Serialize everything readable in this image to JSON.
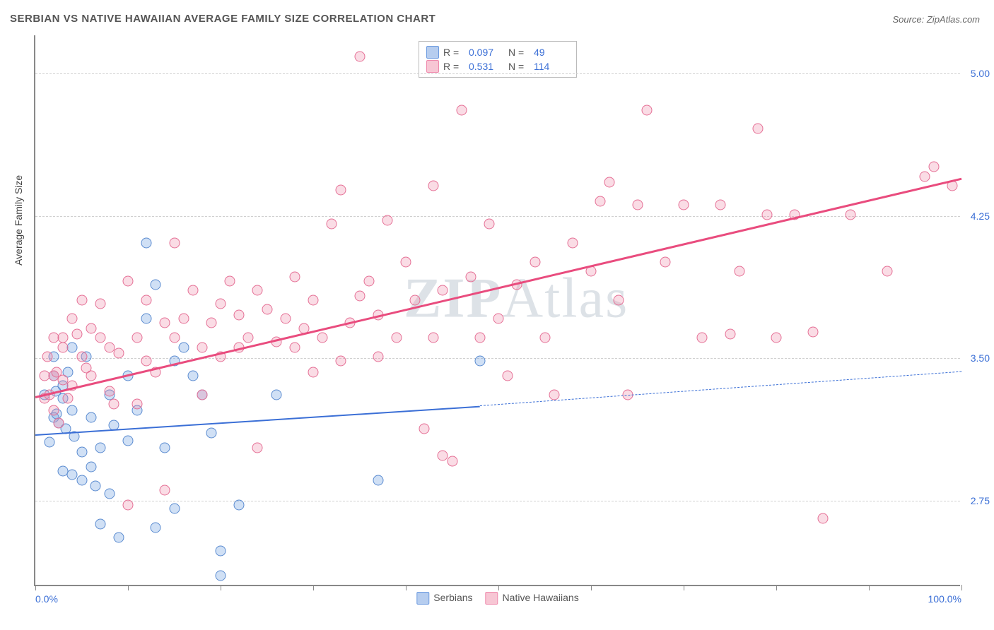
{
  "title": "SERBIAN VS NATIVE HAWAIIAN AVERAGE FAMILY SIZE CORRELATION CHART",
  "source": "Source: ZipAtlas.com",
  "ylabel": "Average Family Size",
  "watermark_bold": "ZIP",
  "watermark_light": "Atlas",
  "chart": {
    "type": "scatter",
    "xlim": [
      0,
      100
    ],
    "ylim": [
      2.3,
      5.2
    ],
    "yticks": [
      2.75,
      3.5,
      4.25,
      5.0
    ],
    "ytick_labels": [
      "2.75",
      "3.50",
      "4.25",
      "5.00"
    ],
    "xticks": [
      0,
      10,
      20,
      30,
      40,
      50,
      60,
      70,
      80,
      90,
      100
    ],
    "xtick_labels": {
      "0": "0.0%",
      "100": "100.0%"
    },
    "background_color": "#ffffff",
    "grid_color": "#d0d0d0",
    "axis_color": "#888888",
    "axis_label_color": "#3b6fd6",
    "marker_size": 15,
    "series": [
      {
        "name": "Serbians",
        "color_fill": "rgba(120,165,225,0.35)",
        "color_stroke": "#5a8bd0",
        "swatch_fill": "#b6cdef",
        "swatch_border": "#6d9be0",
        "R": "0.097",
        "N": "49",
        "trend": {
          "x1": 0,
          "y1": 3.1,
          "x2": 48,
          "y2": 3.25,
          "x2_dash": 100,
          "y2_dash": 3.43,
          "color": "#3b6fd6",
          "width": 2
        },
        "points": [
          [
            1,
            3.3
          ],
          [
            1.5,
            3.05
          ],
          [
            2,
            3.5
          ],
          [
            2,
            3.4
          ],
          [
            2.2,
            3.32
          ],
          [
            2,
            3.18
          ],
          [
            2.3,
            3.2
          ],
          [
            2.5,
            3.15
          ],
          [
            3,
            2.9
          ],
          [
            3,
            3.28
          ],
          [
            3,
            3.35
          ],
          [
            3.3,
            3.12
          ],
          [
            3.5,
            3.42
          ],
          [
            4,
            3.55
          ],
          [
            4,
            2.88
          ],
          [
            4,
            3.22
          ],
          [
            4.2,
            3.08
          ],
          [
            5,
            2.85
          ],
          [
            5,
            3.0
          ],
          [
            5.5,
            3.5
          ],
          [
            6,
            3.18
          ],
          [
            6,
            2.92
          ],
          [
            6.5,
            2.82
          ],
          [
            7,
            3.02
          ],
          [
            7,
            2.62
          ],
          [
            8,
            3.3
          ],
          [
            8,
            2.78
          ],
          [
            8.5,
            3.14
          ],
          [
            9,
            2.55
          ],
          [
            10,
            3.4
          ],
          [
            10,
            3.06
          ],
          [
            11,
            3.22
          ],
          [
            12,
            3.7
          ],
          [
            12,
            4.1
          ],
          [
            13,
            3.88
          ],
          [
            14,
            3.02
          ],
          [
            15,
            3.48
          ],
          [
            16,
            3.55
          ],
          [
            17,
            3.4
          ],
          [
            18,
            3.3
          ],
          [
            19,
            3.1
          ],
          [
            20,
            2.48
          ],
          [
            20,
            2.35
          ],
          [
            22,
            2.72
          ],
          [
            26,
            3.3
          ],
          [
            37,
            2.85
          ],
          [
            48,
            3.48
          ],
          [
            13,
            2.6
          ],
          [
            15,
            2.7
          ]
        ]
      },
      {
        "name": "Native Hawaiians",
        "color_fill": "rgba(240,140,170,0.30)",
        "color_stroke": "#e56f95",
        "swatch_fill": "#f7c6d4",
        "swatch_border": "#ef89ac",
        "R": "0.531",
        "N": "114",
        "trend": {
          "x1": 0,
          "y1": 3.3,
          "x2": 100,
          "y2": 4.45,
          "color": "#e94c7e",
          "width": 2.5
        },
        "points": [
          [
            1,
            3.4
          ],
          [
            1,
            3.28
          ],
          [
            1.3,
            3.5
          ],
          [
            1.5,
            3.3
          ],
          [
            2,
            3.22
          ],
          [
            2,
            3.6
          ],
          [
            2,
            3.4
          ],
          [
            2.3,
            3.42
          ],
          [
            2.5,
            3.15
          ],
          [
            3,
            3.6
          ],
          [
            3,
            3.38
          ],
          [
            3,
            3.55
          ],
          [
            3.5,
            3.28
          ],
          [
            4,
            3.7
          ],
          [
            4,
            3.35
          ],
          [
            4.5,
            3.62
          ],
          [
            5,
            3.5
          ],
          [
            5,
            3.8
          ],
          [
            5.5,
            3.44
          ],
          [
            6,
            3.4
          ],
          [
            6,
            3.65
          ],
          [
            7,
            3.6
          ],
          [
            7,
            3.78
          ],
          [
            8,
            3.32
          ],
          [
            8,
            3.55
          ],
          [
            8.5,
            3.25
          ],
          [
            9,
            3.52
          ],
          [
            10,
            2.72
          ],
          [
            10,
            3.9
          ],
          [
            11,
            3.25
          ],
          [
            11,
            3.6
          ],
          [
            12,
            3.48
          ],
          [
            12,
            3.8
          ],
          [
            13,
            3.42
          ],
          [
            14,
            3.68
          ],
          [
            14,
            2.8
          ],
          [
            15,
            3.6
          ],
          [
            15,
            4.1
          ],
          [
            16,
            3.7
          ],
          [
            17,
            3.85
          ],
          [
            18,
            3.3
          ],
          [
            18,
            3.55
          ],
          [
            19,
            3.68
          ],
          [
            20,
            3.78
          ],
          [
            20,
            3.5
          ],
          [
            21,
            3.9
          ],
          [
            22,
            3.55
          ],
          [
            22,
            3.72
          ],
          [
            23,
            3.6
          ],
          [
            24,
            3.85
          ],
          [
            24,
            3.02
          ],
          [
            25,
            3.75
          ],
          [
            26,
            3.58
          ],
          [
            27,
            3.7
          ],
          [
            28,
            3.92
          ],
          [
            28,
            3.55
          ],
          [
            29,
            3.65
          ],
          [
            30,
            3.8
          ],
          [
            30,
            3.42
          ],
          [
            31,
            3.6
          ],
          [
            32,
            4.2
          ],
          [
            33,
            3.48
          ],
          [
            33,
            4.38
          ],
          [
            34,
            3.68
          ],
          [
            35,
            3.82
          ],
          [
            35,
            5.08
          ],
          [
            36,
            3.9
          ],
          [
            37,
            3.5
          ],
          [
            37,
            3.72
          ],
          [
            38,
            4.22
          ],
          [
            39,
            3.6
          ],
          [
            40,
            4.0
          ],
          [
            41,
            3.8
          ],
          [
            42,
            3.12
          ],
          [
            43,
            3.6
          ],
          [
            43,
            4.4
          ],
          [
            44,
            3.85
          ],
          [
            44,
            2.98
          ],
          [
            45,
            2.95
          ],
          [
            46,
            4.8
          ],
          [
            47,
            3.92
          ],
          [
            48,
            3.6
          ],
          [
            49,
            4.2
          ],
          [
            50,
            3.7
          ],
          [
            51,
            3.4
          ],
          [
            52,
            3.88
          ],
          [
            54,
            4.0
          ],
          [
            55,
            3.6
          ],
          [
            56,
            3.3
          ],
          [
            58,
            4.1
          ],
          [
            60,
            3.95
          ],
          [
            61,
            4.32
          ],
          [
            62,
            4.42
          ],
          [
            63,
            3.8
          ],
          [
            64,
            3.3
          ],
          [
            65,
            4.3
          ],
          [
            66,
            4.8
          ],
          [
            68,
            4.0
          ],
          [
            70,
            4.3
          ],
          [
            72,
            3.6
          ],
          [
            74,
            4.3
          ],
          [
            75,
            3.62
          ],
          [
            76,
            3.95
          ],
          [
            78,
            4.7
          ],
          [
            79,
            4.25
          ],
          [
            80,
            3.6
          ],
          [
            82,
            4.25
          ],
          [
            84,
            3.63
          ],
          [
            85,
            2.65
          ],
          [
            88,
            4.25
          ],
          [
            92,
            3.95
          ],
          [
            96,
            4.45
          ],
          [
            97,
            4.5
          ],
          [
            99,
            4.4
          ]
        ]
      }
    ]
  },
  "legend_top": {
    "rows": [
      {
        "swatch": 0,
        "R_label": "R =",
        "R": "0.097",
        "N_label": "N =",
        "N": "49"
      },
      {
        "swatch": 1,
        "R_label": "R =",
        "R": "0.531",
        "N_label": "N =",
        "N": "114"
      }
    ]
  },
  "legend_bottom": [
    {
      "swatch": 0,
      "label": "Serbians"
    },
    {
      "swatch": 1,
      "label": "Native Hawaiians"
    }
  ]
}
